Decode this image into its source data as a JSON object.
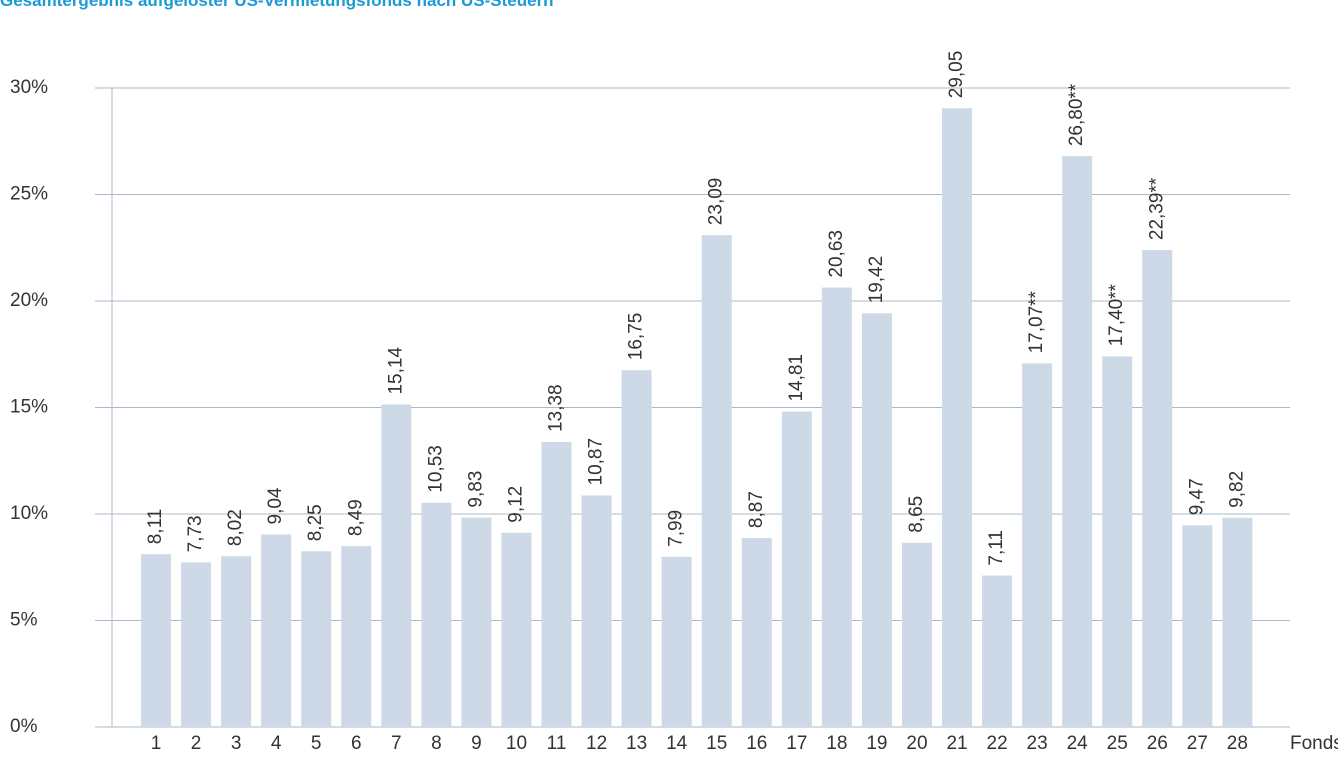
{
  "chart_data": {
    "type": "bar",
    "title": "Gesamtergebnis aufgelöster US-Vermietungsfonds nach US-Steuern",
    "x_label": "Fonds",
    "categories": [
      "1",
      "2",
      "3",
      "4",
      "5",
      "6",
      "7",
      "8",
      "9",
      "10",
      "11",
      "12",
      "13",
      "14",
      "15",
      "16",
      "17",
      "18",
      "19",
      "20",
      "21",
      "22",
      "23",
      "24",
      "25",
      "26",
      "27",
      "28"
    ],
    "values": [
      8.11,
      7.73,
      8.02,
      9.04,
      8.25,
      8.49,
      15.14,
      10.53,
      9.83,
      9.12,
      13.38,
      10.87,
      16.75,
      7.99,
      23.09,
      8.87,
      14.81,
      20.63,
      19.42,
      8.65,
      29.05,
      7.11,
      17.07,
      26.8,
      17.4,
      22.39,
      9.47,
      9.82
    ],
    "value_labels": [
      "8,11",
      "7,73",
      "8,02",
      "9,04",
      "8,25",
      "8,49",
      "15,14",
      "10,53",
      "9,83",
      "9,12",
      "13,38",
      "10,87",
      "16,75",
      "7,99",
      "23,09",
      "8,87",
      "14,81",
      "20,63",
      "19,42",
      "8,65",
      "29,05",
      "7,11",
      "17,07**",
      "26,80**",
      "17,40**",
      "22,39**",
      "9,47",
      "9,82"
    ],
    "color": "#cdd9e6",
    "ylim": [
      0,
      30
    ],
    "yticks": [
      {
        "value": 0,
        "label": "0%"
      },
      {
        "value": 5,
        "label": "5%"
      },
      {
        "value": 10,
        "label": "10%"
      },
      {
        "value": 15,
        "label": "15%"
      },
      {
        "value": 20,
        "label": "20%"
      },
      {
        "value": 25,
        "label": "25%"
      },
      {
        "value": 30,
        "label": "30%"
      }
    ],
    "grid": true
  }
}
